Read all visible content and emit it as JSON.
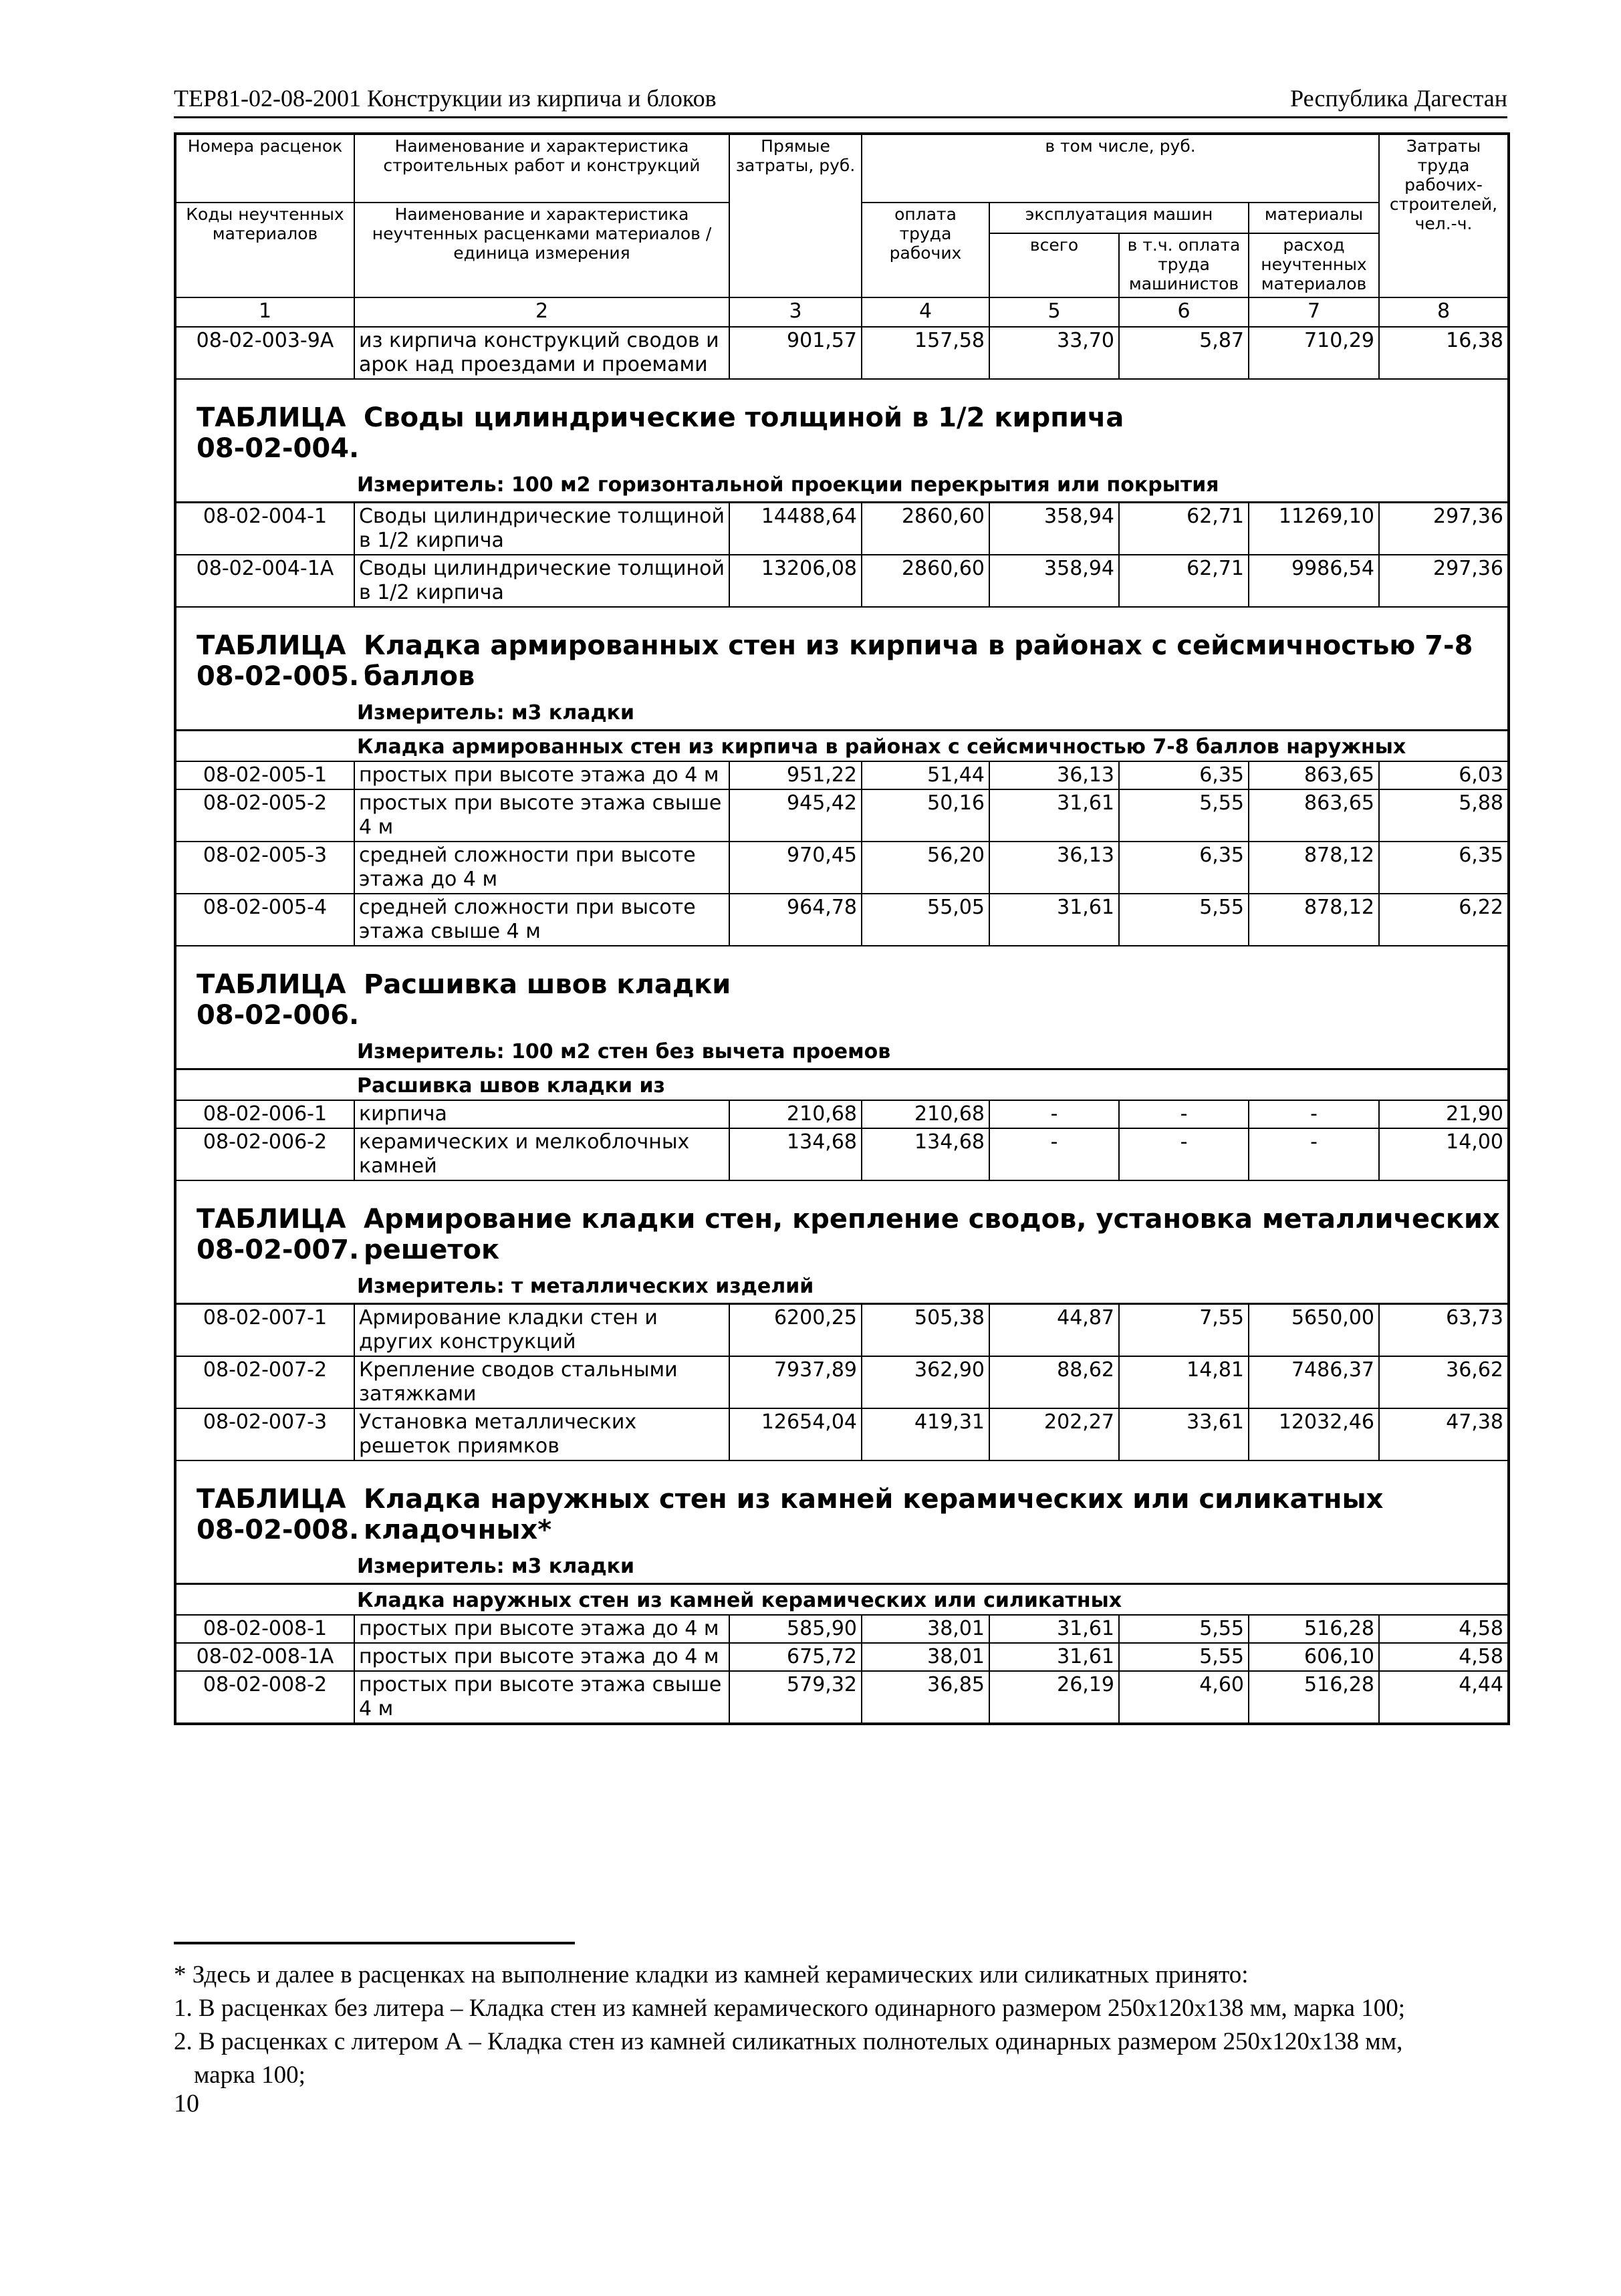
{
  "header": {
    "left": "ТЕР81-02-08-2001 Конструкции из кирпича и блоков",
    "right": "Республика Дагестан"
  },
  "table_header": {
    "col1_top": "Номера расценок",
    "col1_bottom": "Коды неучтенных материалов",
    "col2_top": "Наименование и характеристика строительных работ и конструкций",
    "col2_bottom": "Наименование и характеристика неучтенных расценками материалов / единица измерения",
    "col3": "Прямые затраты, руб.",
    "group": "в том числе, руб.",
    "col4": "оплата труда рабочих",
    "machines": "эксплуатация машин",
    "col5": "всего",
    "col6": "в т.ч. оплата труда машинистов",
    "materials": "материалы",
    "col7": "расход неучтенных материалов",
    "col8": "Затраты труда рабочих-строителей, чел.-ч.",
    "numbers": [
      "1",
      "2",
      "3",
      "4",
      "5",
      "6",
      "7",
      "8"
    ]
  },
  "blocks": [
    {
      "rows": [
        {
          "code": "08-02-003-9А",
          "desc": "из кирпича конструкций сводов и арок над проездами и проемами",
          "values": [
            "901,57",
            "157,58",
            "33,70",
            "5,87",
            "710,29",
            "16,38"
          ]
        }
      ]
    },
    {
      "label": "ТАБЛИЦА 08-02-004.",
      "title": "Своды цилиндрические толщиной в 1/2 кирпича",
      "measure": "Измеритель: 100 м2 горизонтальной проекции перекрытия или покрытия",
      "rows": [
        {
          "code": "08-02-004-1",
          "desc": "Своды цилиндрические толщиной в 1/2 кирпича",
          "values": [
            "14488,64",
            "2860,60",
            "358,94",
            "62,71",
            "11269,10",
            "297,36"
          ]
        },
        {
          "code": "08-02-004-1А",
          "desc": "Своды цилиндрические толщиной в 1/2 кирпича",
          "values": [
            "13206,08",
            "2860,60",
            "358,94",
            "62,71",
            "9986,54",
            "297,36"
          ]
        }
      ]
    },
    {
      "label": "ТАБЛИЦА 08-02-005.",
      "title": "Кладка армированных стен из кирпича в районах с сейсмичностью 7-8 баллов",
      "measure": "Измеритель: м3 кладки",
      "subhead": "Кладка армированных стен из кирпича в районах с сейсмичностью 7-8 баллов наружных",
      "rows": [
        {
          "code": "08-02-005-1",
          "desc": "простых при высоте этажа до 4 м",
          "values": [
            "951,22",
            "51,44",
            "36,13",
            "6,35",
            "863,65",
            "6,03"
          ]
        },
        {
          "code": "08-02-005-2",
          "desc": "простых при высоте этажа свыше 4 м",
          "values": [
            "945,42",
            "50,16",
            "31,61",
            "5,55",
            "863,65",
            "5,88"
          ]
        },
        {
          "code": "08-02-005-3",
          "desc": "средней сложности при высоте этажа до 4 м",
          "values": [
            "970,45",
            "56,20",
            "36,13",
            "6,35",
            "878,12",
            "6,35"
          ]
        },
        {
          "code": "08-02-005-4",
          "desc": "средней сложности при высоте этажа свыше 4 м",
          "values": [
            "964,78",
            "55,05",
            "31,61",
            "5,55",
            "878,12",
            "6,22"
          ]
        }
      ]
    },
    {
      "label": "ТАБЛИЦА 08-02-006.",
      "title": "Расшивка швов кладки",
      "measure": "Измеритель: 100 м2 стен без вычета проемов",
      "subhead": "Расшивка швов кладки из",
      "rows": [
        {
          "code": "08-02-006-1",
          "desc": "кирпича",
          "values": [
            "210,68",
            "210,68",
            "-",
            "-",
            "-",
            "21,90"
          ]
        },
        {
          "code": "08-02-006-2",
          "desc": "керамических и мелкоблочных камней",
          "values": [
            "134,68",
            "134,68",
            "-",
            "-",
            "-",
            "14,00"
          ]
        }
      ]
    },
    {
      "label": "ТАБЛИЦА 08-02-007.",
      "title": "Армирование кладки стен, крепление сводов, установка металлических решеток",
      "measure": "Измеритель: т металлических изделий",
      "rows": [
        {
          "code": "08-02-007-1",
          "desc": "Армирование кладки стен и других конструкций",
          "values": [
            "6200,25",
            "505,38",
            "44,87",
            "7,55",
            "5650,00",
            "63,73"
          ]
        },
        {
          "code": "08-02-007-2",
          "desc": "Крепление сводов стальными затяжками",
          "values": [
            "7937,89",
            "362,90",
            "88,62",
            "14,81",
            "7486,37",
            "36,62"
          ]
        },
        {
          "code": "08-02-007-3",
          "desc": "Установка металлических решеток приямков",
          "values": [
            "12654,04",
            "419,31",
            "202,27",
            "33,61",
            "12032,46",
            "47,38"
          ]
        }
      ]
    },
    {
      "label": "ТАБЛИЦА 08-02-008.",
      "title": "Кладка наружных стен из камней керамических или силикатных кладочных*",
      "measure": "Измеритель: м3 кладки",
      "subhead": "Кладка наружных стен из камней керамических или силикатных",
      "rows": [
        {
          "code": "08-02-008-1",
          "desc": "простых при высоте этажа до 4 м",
          "values": [
            "585,90",
            "38,01",
            "31,61",
            "5,55",
            "516,28",
            "4,58"
          ]
        },
        {
          "code": "08-02-008-1А",
          "desc": "простых при высоте этажа до 4 м",
          "values": [
            "675,72",
            "38,01",
            "31,61",
            "5,55",
            "606,10",
            "4,58"
          ]
        },
        {
          "code": "08-02-008-2",
          "desc": "простых при высоте этажа свыше 4 м",
          "values": [
            "579,32",
            "36,85",
            "26,19",
            "4,60",
            "516,28",
            "4,44"
          ]
        }
      ]
    }
  ],
  "footnotes": {
    "intro": "* Здесь и далее в расценках на выполнение кладки из камней керамических или силикатных принято:",
    "item1": "1. В расценках без литера – Кладка стен из камней керамического одинарного размером 250х120х138 мм, марка 100;",
    "item2": "2. В расценках с литером А  –  Кладка стен из камней силикатных полнотелых одинарных размером 250х120х138 мм,",
    "item2_cont": "марка 100;"
  },
  "page_number": "10"
}
